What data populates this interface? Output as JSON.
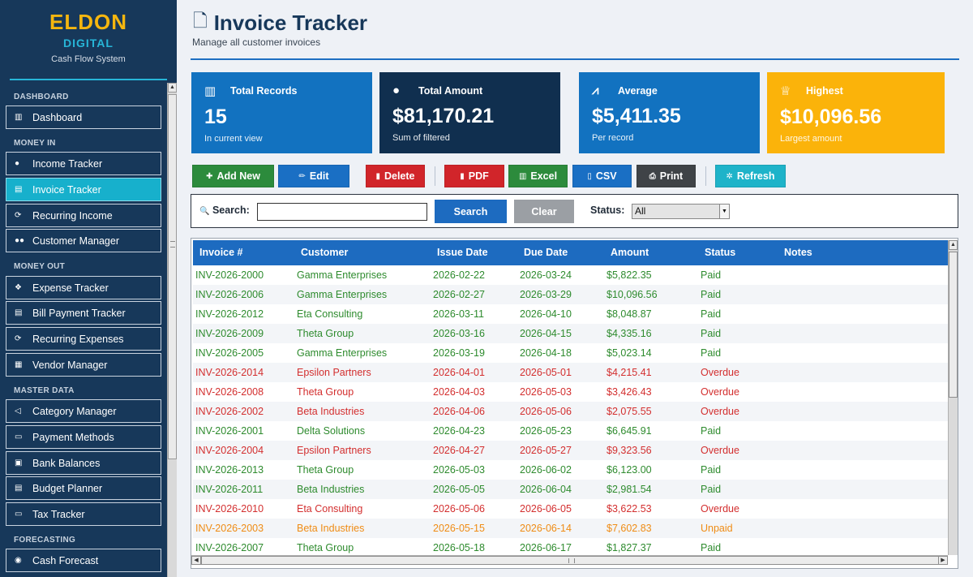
{
  "brand": {
    "name": "ELDON",
    "sub": "DIGITAL",
    "tagline": "Cash Flow System"
  },
  "sidebar": {
    "sections": [
      {
        "label": "DASHBOARD",
        "items": [
          {
            "label": "Dashboard",
            "icon": "bar-chart-icon",
            "glyph": "▥"
          }
        ]
      },
      {
        "label": "MONEY IN",
        "items": [
          {
            "label": "Income Tracker",
            "icon": "money-bag-icon",
            "glyph": "●"
          },
          {
            "label": "Invoice Tracker",
            "icon": "invoice-icon",
            "glyph": "▤",
            "active": true
          },
          {
            "label": "Recurring Income",
            "icon": "recurring-icon",
            "glyph": "⟳"
          },
          {
            "label": "Customer Manager",
            "icon": "users-icon",
            "glyph": "●●"
          }
        ]
      },
      {
        "label": "MONEY OUT",
        "items": [
          {
            "label": "Expense Tracker",
            "icon": "cash-icon",
            "glyph": "❖"
          },
          {
            "label": "Bill Payment Tracker",
            "icon": "bill-icon",
            "glyph": "▤"
          },
          {
            "label": "Recurring Expenses",
            "icon": "recurring-icon",
            "glyph": "⟳"
          },
          {
            "label": "Vendor Manager",
            "icon": "vendor-icon",
            "glyph": "▦"
          }
        ]
      },
      {
        "label": "MASTER DATA",
        "items": [
          {
            "label": "Category Manager",
            "icon": "tag-icon",
            "glyph": "◁"
          },
          {
            "label": "Payment Methods",
            "icon": "credit-card-icon",
            "glyph": "▭"
          },
          {
            "label": "Bank Balances",
            "icon": "bank-icon",
            "glyph": "▣"
          },
          {
            "label": "Budget Planner",
            "icon": "budget-icon",
            "glyph": "▤"
          },
          {
            "label": "Tax Tracker",
            "icon": "tax-icon",
            "glyph": "▭"
          }
        ]
      },
      {
        "label": "FORECASTING",
        "items": [
          {
            "label": "Cash Forecast",
            "icon": "forecast-icon",
            "glyph": "◉"
          }
        ]
      }
    ]
  },
  "header": {
    "title": "Invoice Tracker",
    "subtitle": "Manage all customer invoices"
  },
  "cards": [
    {
      "label": "Total Records",
      "value": "15",
      "sub": "In current view",
      "color": "#1272c0",
      "icon": "bar-chart-icon",
      "glyph": "▥"
    },
    {
      "label": "Total Amount",
      "value": "$81,170.21",
      "sub": "Sum of filtered",
      "color": "#102f4f",
      "icon": "money-bag-icon",
      "glyph": "●"
    },
    {
      "label": "Average",
      "value": "$5,411.35",
      "sub": "Per record",
      "color": "#1272c0",
      "icon": "trend-chart-icon",
      "glyph": "⩘"
    },
    {
      "label": "Highest",
      "value": "$10,096.56",
      "sub": "Largest amount",
      "color": "#fbb30a",
      "icon": "trophy-icon",
      "glyph": "♕"
    }
  ],
  "toolbar": [
    {
      "label": "Add New",
      "icon": "plus-icon",
      "glyph": "✚",
      "color": "#2c8b3c"
    },
    {
      "label": "Edit",
      "icon": "pencil-icon",
      "glyph": "✏",
      "color": "#1a6fc4"
    },
    {
      "label": "Delete",
      "icon": "trash-icon",
      "glyph": "▮",
      "color": "#d1252a"
    },
    {
      "label": "PDF",
      "icon": "pdf-icon",
      "glyph": "▮",
      "color": "#d1252a"
    },
    {
      "label": "Excel",
      "icon": "excel-icon",
      "glyph": "▥",
      "color": "#2c8b3c"
    },
    {
      "label": "CSV",
      "icon": "csv-icon",
      "glyph": "▯",
      "color": "#1a6fc4"
    },
    {
      "label": "Print",
      "icon": "printer-icon",
      "glyph": "⎙",
      "color": "#3f4347"
    },
    {
      "label": "Refresh",
      "icon": "refresh-icon",
      "glyph": "✲",
      "color": "#1eb3c9"
    }
  ],
  "search": {
    "label": "Search:",
    "icon": "search-icon",
    "glyph": "🔍",
    "value": "",
    "placeholder": "",
    "search_btn": "Search",
    "clear_btn": "Clear",
    "status_label": "Status:",
    "status_value": "All"
  },
  "table": {
    "columns": [
      "Invoice #",
      "Customer",
      "Issue Date",
      "Due Date",
      "Amount",
      "Status",
      "Notes"
    ],
    "status_colors": {
      "Paid": "#2e8b2e",
      "Overdue": "#d32f2f",
      "Unpaid": "#ef8c15"
    },
    "rows": [
      [
        "INV-2026-2000",
        "Gamma Enterprises",
        "2026-02-22",
        "2026-03-24",
        "$5,822.35",
        "Paid",
        ""
      ],
      [
        "INV-2026-2006",
        "Gamma Enterprises",
        "2026-02-27",
        "2026-03-29",
        "$10,096.56",
        "Paid",
        ""
      ],
      [
        "INV-2026-2012",
        "Eta Consulting",
        "2026-03-11",
        "2026-04-10",
        "$8,048.87",
        "Paid",
        ""
      ],
      [
        "INV-2026-2009",
        "Theta Group",
        "2026-03-16",
        "2026-04-15",
        "$4,335.16",
        "Paid",
        ""
      ],
      [
        "INV-2026-2005",
        "Gamma Enterprises",
        "2026-03-19",
        "2026-04-18",
        "$5,023.14",
        "Paid",
        ""
      ],
      [
        "INV-2026-2014",
        "Epsilon Partners",
        "2026-04-01",
        "2026-05-01",
        "$4,215.41",
        "Overdue",
        ""
      ],
      [
        "INV-2026-2008",
        "Theta Group",
        "2026-04-03",
        "2026-05-03",
        "$3,426.43",
        "Overdue",
        ""
      ],
      [
        "INV-2026-2002",
        "Beta Industries",
        "2026-04-06",
        "2026-05-06",
        "$2,075.55",
        "Overdue",
        ""
      ],
      [
        "INV-2026-2001",
        "Delta Solutions",
        "2026-04-23",
        "2026-05-23",
        "$6,645.91",
        "Paid",
        ""
      ],
      [
        "INV-2026-2004",
        "Epsilon Partners",
        "2026-04-27",
        "2026-05-27",
        "$9,323.56",
        "Overdue",
        ""
      ],
      [
        "INV-2026-2013",
        "Theta Group",
        "2026-05-03",
        "2026-06-02",
        "$6,123.00",
        "Paid",
        ""
      ],
      [
        "INV-2026-2011",
        "Beta Industries",
        "2026-05-05",
        "2026-06-04",
        "$2,981.54",
        "Paid",
        ""
      ],
      [
        "INV-2026-2010",
        "Eta Consulting",
        "2026-05-06",
        "2026-06-05",
        "$3,622.53",
        "Overdue",
        ""
      ],
      [
        "INV-2026-2003",
        "Beta Industries",
        "2026-05-15",
        "2026-06-14",
        "$7,602.83",
        "Unpaid",
        ""
      ],
      [
        "INV-2026-2007",
        "Theta Group",
        "2026-05-18",
        "2026-06-17",
        "$1,827.37",
        "Paid",
        ""
      ]
    ]
  }
}
